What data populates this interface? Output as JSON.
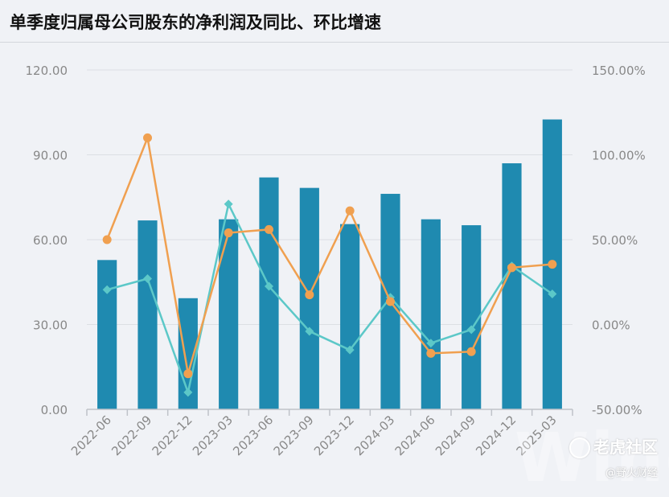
{
  "title": "单季度归属母公司股东的净利润及同比、环比增速",
  "watermark": {
    "brand": "老虎社区",
    "author": "@野火财经",
    "logo": "Wind"
  },
  "colors": {
    "bar": "#1f8ab0",
    "yoy_line": "#f0a050",
    "qoq_line": "#5cc8c8",
    "axis": "#888888",
    "grid": "#dcdfe4"
  },
  "chart_data": {
    "type": "bar",
    "categories": [
      "2022-06",
      "2022-09",
      "2022-12",
      "2023-03",
      "2023-06",
      "2023-09",
      "2023-12",
      "2024-03",
      "2024-06",
      "2024-09",
      "2024-12",
      "2025-03"
    ],
    "yticks": [
      "0.00",
      "30.00",
      "60.00",
      "90.00",
      "120.00"
    ],
    "y2ticks": [
      "-50.00%",
      "0.00%",
      "50.00%",
      "100.00%",
      "150.00%"
    ],
    "ylim": [
      0,
      120
    ],
    "y2lim": [
      -50,
      150
    ],
    "series": [
      {
        "type": "bar",
        "axis": "left",
        "values": [
          52.8,
          66.8,
          39.3,
          67.2,
          82.0,
          78.3,
          65.5,
          76.2,
          67.2,
          65.1,
          87.0,
          102.5
        ]
      },
      {
        "type": "line",
        "axis": "right",
        "marker": "circle",
        "color": "#f0a050",
        "values": [
          50.0,
          110.0,
          -29.0,
          54.0,
          56.0,
          17.5,
          67.0,
          13.5,
          -17.0,
          -16.0,
          33.5,
          35.5
        ]
      },
      {
        "type": "line",
        "axis": "right",
        "marker": "diamond",
        "color": "#5cc8c8",
        "values": [
          20.5,
          27.0,
          -40.0,
          71.0,
          22.5,
          -4.0,
          -15.0,
          16.0,
          -11.0,
          -3.0,
          34.5,
          18.0
        ]
      }
    ]
  }
}
